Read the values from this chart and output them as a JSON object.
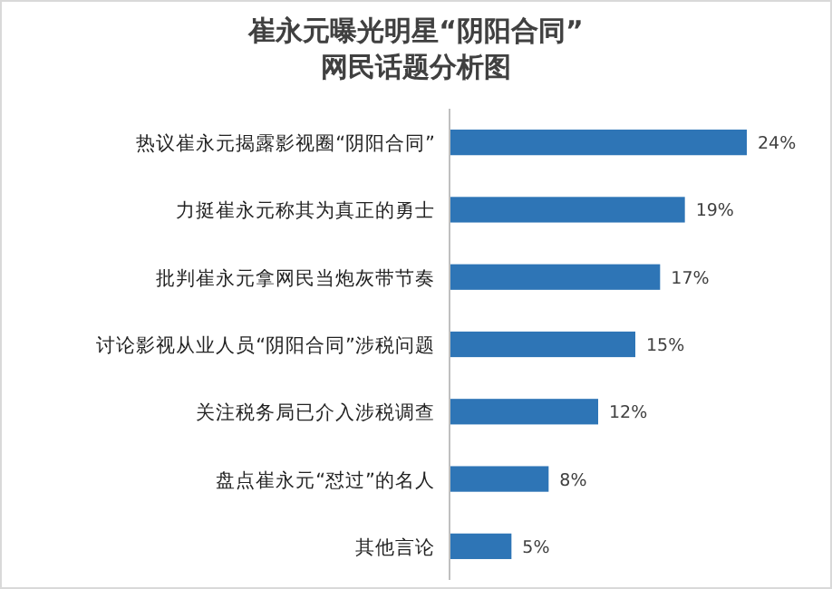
{
  "chart_data": {
    "type": "bar",
    "orientation": "horizontal",
    "title": "崔永元曝光明星“阴阳合同”\n网民话题分析图",
    "categories": [
      "热议崔永元揭露影视圈“阴阳合同”",
      "力挺崔永元称其为真正的勇士",
      "批判崔永元拿网民当炮灰带节奏",
      "讨论影视从业人员“阴阳合同”涉税问题",
      "关注税务局已介入涉税调查",
      "盘点崔永元“怼过”的名人",
      "其他言论"
    ],
    "values": [
      24,
      19,
      17,
      15,
      12,
      8,
      5
    ],
    "value_labels": [
      "24%",
      "19%",
      "17%",
      "15%",
      "12%",
      "8%",
      "5%"
    ],
    "color": "#2e75b6"
  }
}
